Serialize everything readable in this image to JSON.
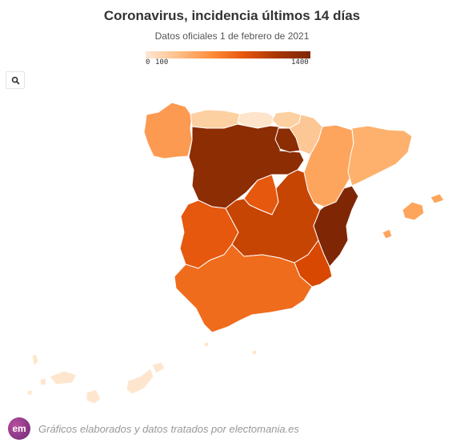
{
  "header": {
    "title": "Coronavirus, incidencia últimos 14 días",
    "subtitle": "Datos oficiales 1 de febrero de 2021"
  },
  "legend": {
    "labels": [
      "0",
      "100",
      "1400"
    ],
    "min": 0,
    "max": 1400,
    "colors": [
      "#fee8d6",
      "#fdbe85",
      "#fd8d3c",
      "#e6550d",
      "#a63603",
      "#7f2704"
    ]
  },
  "toolbar": {
    "search_icon": "search-icon"
  },
  "footer": {
    "logo_text": "em",
    "credit": "Gráficos elaborados y datos tratados por electomania.es"
  },
  "map": {
    "type": "choropleth",
    "regions": [
      {
        "name": "Galicia",
        "color": "#fd9a52"
      },
      {
        "name": "Asturias",
        "color": "#fdd0a2"
      },
      {
        "name": "Cantabria",
        "color": "#fee4cb"
      },
      {
        "name": "País Vasco",
        "color": "#fdd0a2"
      },
      {
        "name": "Navarra",
        "color": "#fdc795"
      },
      {
        "name": "La Rioja",
        "color": "#8c2d04"
      },
      {
        "name": "Aragón",
        "color": "#fda55d"
      },
      {
        "name": "Cataluña",
        "color": "#fdb16c"
      },
      {
        "name": "Castilla y León",
        "color": "#8c2d04"
      },
      {
        "name": "Madrid",
        "color": "#e6580e"
      },
      {
        "name": "Castilla-La Mancha",
        "color": "#c64503"
      },
      {
        "name": "Extremadura",
        "color": "#e6580e"
      },
      {
        "name": "Comunidad Valenciana",
        "color": "#7f2704"
      },
      {
        "name": "Murcia",
        "color": "#d94801"
      },
      {
        "name": "Andalucía",
        "color": "#f06c1d"
      },
      {
        "name": "Islas Baleares",
        "color": "#fda55d"
      },
      {
        "name": "Islas Canarias",
        "color": "#fee6ce"
      },
      {
        "name": "Ceuta",
        "color": "#fee6ce"
      },
      {
        "name": "Melilla",
        "color": "#fee6ce"
      }
    ]
  }
}
